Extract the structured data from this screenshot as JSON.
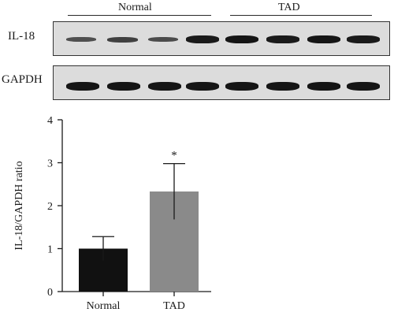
{
  "blot": {
    "groups": [
      "Normal",
      "TAD"
    ],
    "rows": [
      {
        "label": "IL-18",
        "band_intensity": [
          0.35,
          0.5,
          0.4,
          0.95,
          1.0,
          0.95,
          1.0,
          0.95
        ]
      },
      {
        "label": "GAPDH",
        "band_intensity": [
          1.0,
          1.0,
          1.0,
          1.0,
          1.0,
          1.0,
          1.0,
          1.0
        ]
      }
    ]
  },
  "chart_data": {
    "type": "bar",
    "categories": [
      "Normal",
      "TAD"
    ],
    "values": [
      1.0,
      2.33
    ],
    "errors": [
      0.28,
      0.65
    ],
    "significance": [
      "",
      "*"
    ],
    "bar_colors": [
      "#111111",
      "#8a8a8a"
    ],
    "title": "",
    "xlabel": "",
    "ylabel": "IL-18/GAPDH ratio",
    "ylim": [
      0,
      4
    ],
    "yticks": [
      0,
      1,
      2,
      3,
      4
    ],
    "grid": false
  }
}
